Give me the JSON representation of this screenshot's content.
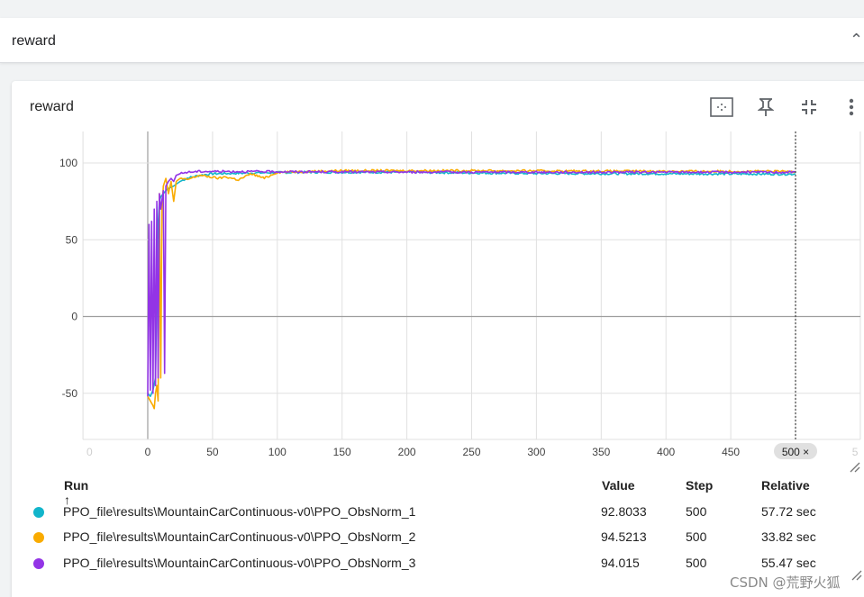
{
  "section": {
    "title": "reward"
  },
  "card": {
    "title": "reward",
    "tools": [
      "fit-domain-icon",
      "pin-icon",
      "collapse-icon",
      "more-vert-icon"
    ]
  },
  "chart_data": {
    "type": "line",
    "title": "",
    "xlabel": "",
    "ylabel": "",
    "xlim": [
      -45,
      545
    ],
    "ylim": [
      -80,
      120
    ],
    "x_ticks": [
      "0",
      "0",
      "50",
      "100",
      "150",
      "200",
      "250",
      "300",
      "350",
      "400",
      "450",
      "500 ×",
      "5"
    ],
    "y_ticks": [
      "100",
      "50",
      "0",
      "-50"
    ],
    "grid": true,
    "cursor_step": 500,
    "series": [
      {
        "name": "PPO_file\\results\\MountainCarContinuous-v0\\PPO_ObsNorm_1",
        "color": "#12b5cb",
        "points": [
          [
            0,
            -50
          ],
          [
            2,
            -52
          ],
          [
            4,
            -48
          ],
          [
            6,
            -40
          ],
          [
            7,
            20
          ],
          [
            8,
            60
          ],
          [
            9,
            75
          ],
          [
            10,
            78
          ],
          [
            12,
            80
          ],
          [
            15,
            83
          ],
          [
            20,
            85
          ],
          [
            25,
            88
          ],
          [
            30,
            90
          ],
          [
            40,
            92
          ],
          [
            50,
            93
          ],
          [
            80,
            93.5
          ],
          [
            120,
            94
          ],
          [
            200,
            94
          ],
          [
            260,
            93.5
          ],
          [
            300,
            93.2
          ],
          [
            400,
            93
          ],
          [
            450,
            92.9
          ],
          [
            500,
            92.8
          ]
        ]
      },
      {
        "name": "PPO_file\\results\\MountainCarContinuous-v0\\PPO_ObsNorm_2",
        "color": "#f9ab00",
        "points": [
          [
            0,
            -52
          ],
          [
            2,
            -55
          ],
          [
            4,
            -58
          ],
          [
            5,
            -60
          ],
          [
            6,
            -50
          ],
          [
            7,
            -45
          ],
          [
            8,
            -55
          ],
          [
            9,
            80
          ],
          [
            10,
            -40
          ],
          [
            11,
            70
          ],
          [
            12,
            85
          ],
          [
            14,
            90
          ],
          [
            16,
            80
          ],
          [
            18,
            88
          ],
          [
            20,
            75
          ],
          [
            22,
            88
          ],
          [
            25,
            90
          ],
          [
            30,
            89
          ],
          [
            40,
            92
          ],
          [
            55,
            90
          ],
          [
            60,
            91
          ],
          [
            70,
            89
          ],
          [
            80,
            93
          ],
          [
            90,
            90
          ],
          [
            100,
            94
          ],
          [
            150,
            95
          ],
          [
            200,
            95
          ],
          [
            250,
            95
          ],
          [
            300,
            94.8
          ],
          [
            400,
            94.6
          ],
          [
            500,
            94.5
          ]
        ]
      },
      {
        "name": "PPO_file\\results\\MountainCarContinuous-v0\\PPO_ObsNorm_3",
        "color": "#9334e6",
        "points": [
          [
            0,
            -52
          ],
          [
            1,
            60
          ],
          [
            2,
            -48
          ],
          [
            3,
            62
          ],
          [
            4,
            -50
          ],
          [
            5,
            70
          ],
          [
            6,
            -45
          ],
          [
            7,
            75
          ],
          [
            8,
            -40
          ],
          [
            9,
            80
          ],
          [
            10,
            70
          ],
          [
            12,
            82
          ],
          [
            13,
            -37
          ],
          [
            14,
            85
          ],
          [
            16,
            88
          ],
          [
            18,
            90
          ],
          [
            20,
            88
          ],
          [
            22,
            92
          ],
          [
            25,
            93
          ],
          [
            30,
            94
          ],
          [
            40,
            94.5
          ],
          [
            60,
            94.5
          ],
          [
            100,
            94.3
          ],
          [
            150,
            94.2
          ],
          [
            200,
            94.1
          ],
          [
            300,
            94
          ],
          [
            400,
            94
          ],
          [
            500,
            94
          ]
        ]
      }
    ]
  },
  "table": {
    "headers": {
      "run": "Run ↑",
      "value": "Value",
      "step": "Step",
      "relative": "Relative"
    },
    "rows": [
      {
        "color": "#12b5cb",
        "run": "PPO_file\\results\\MountainCarContinuous-v0\\PPO_ObsNorm_1",
        "value": "92.8033",
        "step": "500",
        "relative": "57.72 sec"
      },
      {
        "color": "#f9ab00",
        "run": "PPO_file\\results\\MountainCarContinuous-v0\\PPO_ObsNorm_2",
        "value": "94.5213",
        "step": "500",
        "relative": "33.82 sec"
      },
      {
        "color": "#9334e6",
        "run": "PPO_file\\results\\MountainCarContinuous-v0\\PPO_ObsNorm_3",
        "value": "94.015",
        "step": "500",
        "relative": "55.47 sec"
      }
    ]
  },
  "watermark": "CSDN @荒野火狐"
}
